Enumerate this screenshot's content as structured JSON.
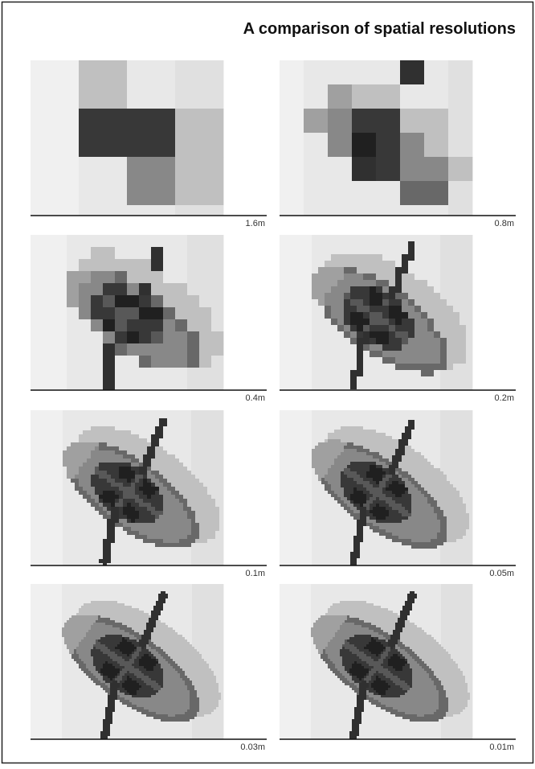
{
  "title": "A comparison of spatial resolutions",
  "panels": [
    {
      "label": "1.6m"
    },
    {
      "label": "0.8m"
    },
    {
      "label": "0.4m"
    },
    {
      "label": "0.2m"
    },
    {
      "label": "0.1m"
    },
    {
      "label": "0.05m"
    },
    {
      "label": "0.03m"
    },
    {
      "label": "0.01m"
    }
  ]
}
